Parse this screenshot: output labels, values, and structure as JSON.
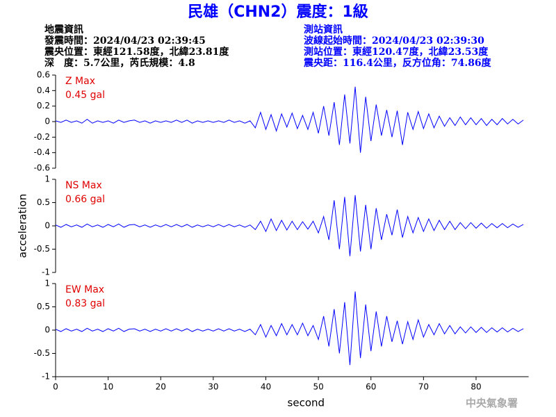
{
  "header": {
    "title": "民雄（CHN2）震度：1級",
    "left": [
      "地震資訊",
      "發震時間：2024/04/23 02:39:45",
      "震央位置：東經121.58度，北緯23.81度",
      "深　度：5.7公里，芮氏規模：4.8"
    ],
    "right": [
      "測站資訊",
      "波線起始時間：2024/04/23 02:39:30",
      "測站位置：東經120.47度，北緯23.53度",
      "震央距：116.4公里，反方位角：74.86度"
    ]
  },
  "footer": "中央氣象署",
  "chart_data": [
    {
      "type": "line",
      "label": "Z Max",
      "max_label": "0.45 gal",
      "color": "#0000ff",
      "label_color": "#e00000",
      "xlim": [
        0,
        90
      ],
      "ylim": [
        -0.6,
        0.6
      ],
      "yticks": [
        0.6,
        0.4,
        0.2,
        0,
        -0.2,
        -0.4,
        -0.6
      ],
      "x": [
        0,
        1,
        2,
        3,
        4,
        5,
        6,
        7,
        8,
        9,
        10,
        11,
        12,
        13,
        14,
        15,
        16,
        17,
        18,
        19,
        20,
        21,
        22,
        23,
        24,
        25,
        26,
        27,
        28,
        29,
        30,
        31,
        32,
        33,
        34,
        35,
        36,
        37,
        38,
        39,
        40,
        41,
        42,
        43,
        44,
        45,
        46,
        47,
        48,
        49,
        50,
        51,
        52,
        53,
        54,
        55,
        56,
        57,
        58,
        59,
        60,
        61,
        62,
        63,
        64,
        65,
        66,
        67,
        68,
        69,
        70,
        71,
        72,
        73,
        74,
        75,
        76,
        77,
        78,
        79,
        80,
        81,
        82,
        83,
        84,
        85,
        86,
        87,
        88,
        89
      ],
      "values": [
        0.01,
        -0.01,
        0.02,
        -0.01,
        0.01,
        -0.02,
        0.03,
        -0.02,
        0.01,
        -0.01,
        0.01,
        -0.02,
        0.02,
        -0.01,
        0.01,
        0.02,
        -0.01,
        0.01,
        -0.02,
        0.01,
        -0.01,
        0.01,
        -0.01,
        0.02,
        -0.01,
        0.02,
        -0.02,
        0.01,
        -0.01,
        0.01,
        -0.01,
        0.01,
        -0.01,
        0.02,
        -0.01,
        0.01,
        -0.02,
        0.01,
        -0.08,
        0.12,
        -0.1,
        0.09,
        -0.12,
        0.1,
        -0.07,
        0.11,
        -0.09,
        0.08,
        -0.1,
        0.12,
        -0.15,
        0.2,
        -0.18,
        0.25,
        -0.3,
        0.35,
        -0.28,
        0.45,
        -0.4,
        0.32,
        -0.25,
        0.22,
        -0.18,
        0.15,
        -0.2,
        0.14,
        -0.3,
        0.12,
        -0.1,
        0.13,
        -0.09,
        0.1,
        -0.08,
        0.07,
        -0.06,
        0.05,
        -0.05,
        0.06,
        -0.04,
        0.05,
        -0.04,
        0.04,
        -0.05,
        0.03,
        -0.04,
        0.04,
        -0.03,
        0.03,
        -0.03,
        0.02
      ]
    },
    {
      "type": "line",
      "label": "NS Max",
      "max_label": "0.66 gal",
      "color": "#0000ff",
      "label_color": "#e00000",
      "ylabel": "acceleration",
      "xlim": [
        0,
        90
      ],
      "ylim": [
        -1,
        1
      ],
      "yticks": [
        1,
        0.5,
        0,
        -0.5,
        -1
      ],
      "x": [
        0,
        1,
        2,
        3,
        4,
        5,
        6,
        7,
        8,
        9,
        10,
        11,
        12,
        13,
        14,
        15,
        16,
        17,
        18,
        19,
        20,
        21,
        22,
        23,
        24,
        25,
        26,
        27,
        28,
        29,
        30,
        31,
        32,
        33,
        34,
        35,
        36,
        37,
        38,
        39,
        40,
        41,
        42,
        43,
        44,
        45,
        46,
        47,
        48,
        49,
        50,
        51,
        52,
        53,
        54,
        55,
        56,
        57,
        58,
        59,
        60,
        61,
        62,
        63,
        64,
        65,
        66,
        67,
        68,
        69,
        70,
        71,
        72,
        73,
        74,
        75,
        76,
        77,
        78,
        79,
        80,
        81,
        82,
        83,
        84,
        85,
        86,
        87,
        88,
        89
      ],
      "values": [
        0.02,
        -0.03,
        0.03,
        -0.02,
        0.02,
        -0.03,
        0.04,
        -0.02,
        0.02,
        -0.03,
        0.03,
        -0.02,
        0.04,
        -0.03,
        0.02,
        0.03,
        -0.02,
        0.02,
        -0.03,
        0.02,
        -0.02,
        0.03,
        -0.02,
        0.03,
        -0.02,
        0.03,
        -0.03,
        0.02,
        -0.02,
        0.02,
        -0.02,
        0.03,
        -0.02,
        0.03,
        -0.02,
        0.02,
        -0.03,
        0.02,
        -0.08,
        0.1,
        -0.12,
        0.15,
        -0.1,
        0.12,
        -0.09,
        0.1,
        -0.08,
        0.09,
        -0.07,
        0.1,
        -0.15,
        0.2,
        -0.3,
        0.55,
        -0.5,
        0.62,
        -0.65,
        0.66,
        -0.55,
        0.45,
        -0.5,
        0.38,
        -0.3,
        0.25,
        -0.2,
        0.35,
        -0.25,
        0.2,
        -0.15,
        0.18,
        -0.12,
        0.15,
        -0.1,
        0.12,
        -0.08,
        0.1,
        -0.08,
        0.07,
        -0.06,
        0.07,
        -0.05,
        0.06,
        -0.05,
        0.05,
        -0.04,
        0.05,
        -0.04,
        0.04,
        -0.03,
        0.03
      ]
    },
    {
      "type": "line",
      "label": "EW Max",
      "max_label": "0.83 gal",
      "color": "#0000ff",
      "label_color": "#e00000",
      "xlabel": "second",
      "xlim": [
        0,
        90
      ],
      "xticks": [
        0,
        10,
        20,
        30,
        40,
        50,
        60,
        70,
        80
      ],
      "ylim": [
        -1,
        1
      ],
      "yticks": [
        1,
        0.5,
        0,
        -0.5,
        -1
      ],
      "x": [
        0,
        1,
        2,
        3,
        4,
        5,
        6,
        7,
        8,
        9,
        10,
        11,
        12,
        13,
        14,
        15,
        16,
        17,
        18,
        19,
        20,
        21,
        22,
        23,
        24,
        25,
        26,
        27,
        28,
        29,
        30,
        31,
        32,
        33,
        34,
        35,
        36,
        37,
        38,
        39,
        40,
        41,
        42,
        43,
        44,
        45,
        46,
        47,
        48,
        49,
        50,
        51,
        52,
        53,
        54,
        55,
        56,
        57,
        58,
        59,
        60,
        61,
        62,
        63,
        64,
        65,
        66,
        67,
        68,
        69,
        70,
        71,
        72,
        73,
        74,
        75,
        76,
        77,
        78,
        79,
        80,
        81,
        82,
        83,
        84,
        85,
        86,
        87,
        88,
        89
      ],
      "values": [
        0.02,
        -0.03,
        0.03,
        -0.02,
        0.02,
        -0.03,
        0.04,
        -0.02,
        0.02,
        -0.03,
        0.03,
        -0.02,
        0.04,
        -0.03,
        0.02,
        0.03,
        -0.02,
        0.02,
        -0.03,
        0.02,
        -0.02,
        0.03,
        -0.02,
        0.03,
        -0.02,
        0.03,
        -0.03,
        0.02,
        -0.02,
        0.02,
        -0.02,
        0.03,
        -0.02,
        0.03,
        -0.02,
        0.02,
        -0.03,
        0.02,
        -0.1,
        0.12,
        -0.15,
        0.1,
        -0.12,
        0.14,
        -0.1,
        0.12,
        -0.1,
        0.15,
        -0.12,
        0.1,
        -0.2,
        0.3,
        -0.35,
        0.45,
        -0.5,
        0.6,
        -0.75,
        0.83,
        -0.6,
        0.55,
        -0.45,
        0.4,
        -0.35,
        0.3,
        -0.25,
        0.2,
        -0.3,
        0.18,
        -0.2,
        0.22,
        -0.15,
        0.12,
        -0.1,
        0.14,
        -0.08,
        0.1,
        -0.08,
        0.07,
        -0.06,
        0.07,
        -0.05,
        0.06,
        -0.05,
        0.05,
        -0.04,
        0.05,
        -0.04,
        0.04,
        -0.03,
        0.03
      ]
    }
  ]
}
